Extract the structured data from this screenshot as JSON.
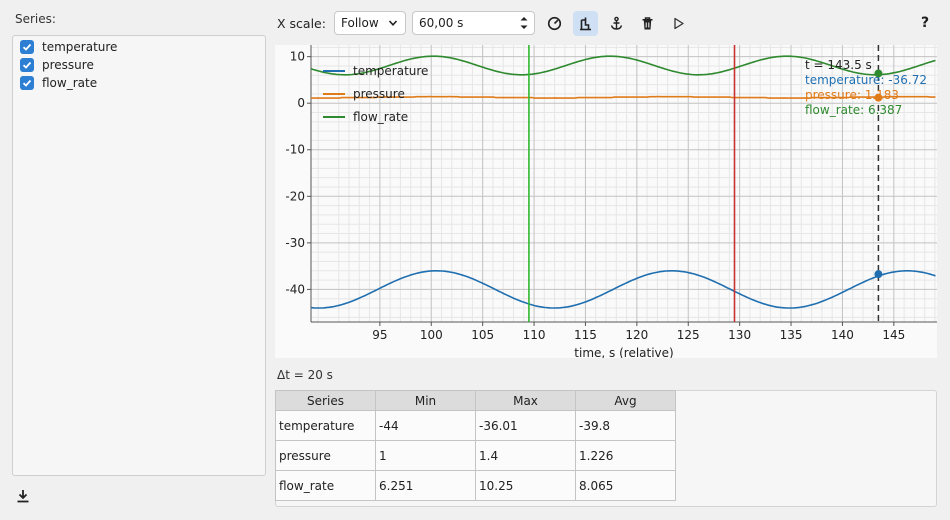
{
  "sidebar": {
    "heading": "Series:",
    "series": [
      {
        "label": "temperature",
        "checked": true
      },
      {
        "label": "pressure",
        "checked": true
      },
      {
        "label": "flow_rate",
        "checked": true
      }
    ]
  },
  "toolbar": {
    "xscale_label": "X scale:",
    "mode_value": "Follow",
    "window_value": "60,00 s",
    "buttons": [
      "reset-view-icon",
      "pin-cursor-icon",
      "anchor-icon",
      "trash-icon",
      "play-icon"
    ],
    "help_label": "?"
  },
  "chart_data": {
    "type": "line",
    "xlabel": "time, s (relative)",
    "ylabel": "",
    "xlim": [
      88.3,
      149.2
    ],
    "ylim": [
      -47,
      12.5
    ],
    "xticks": [
      95,
      100,
      105,
      110,
      115,
      120,
      125,
      130,
      135,
      140,
      145
    ],
    "yticks": [
      10,
      0,
      -10,
      -20,
      -30,
      -40
    ],
    "grid": true,
    "legend_position": "top-left",
    "series": [
      {
        "name": "temperature",
        "color": "#1f6fb0",
        "mean": -40,
        "amplitude": 4,
        "period": 22.9,
        "peak_at": 100.5
      },
      {
        "name": "pressure",
        "color": "#e07b1a",
        "mean": 1.25,
        "amplitude": 0.12,
        "period": 22.9,
        "peak_at": 100.5
      },
      {
        "name": "flow_rate",
        "color": "#2f8a2f",
        "mean": 8.1,
        "amplitude": 2.0,
        "period": 17.2,
        "peak_at": 100.2
      }
    ],
    "markers": [
      {
        "x": 109.5,
        "color": "#2fb82f"
      },
      {
        "x": 129.5,
        "color": "#c83232"
      }
    ],
    "cursor": {
      "x": 143.5,
      "time_label": "t = 143.5 s",
      "readouts": [
        {
          "text": "temperature: -36.72",
          "color": "#1f6fb0",
          "y": -36.72
        },
        {
          "text": "pressure: 1.183",
          "color": "#e07b1a",
          "y": 1.183
        },
        {
          "text": "flow_rate: 6.387",
          "color": "#2f8a2f",
          "y": 6.387
        }
      ]
    }
  },
  "delta_label": "Δt = 20 s",
  "stats": {
    "headers": [
      "Series",
      "Min",
      "Max",
      "Avg"
    ],
    "rows": [
      [
        "temperature",
        "-44",
        "-36.01",
        "-39.8"
      ],
      [
        "pressure",
        "1",
        "1.4",
        "1.226"
      ],
      [
        "flow_rate",
        "6.251",
        "10.25",
        "8.065"
      ]
    ]
  }
}
